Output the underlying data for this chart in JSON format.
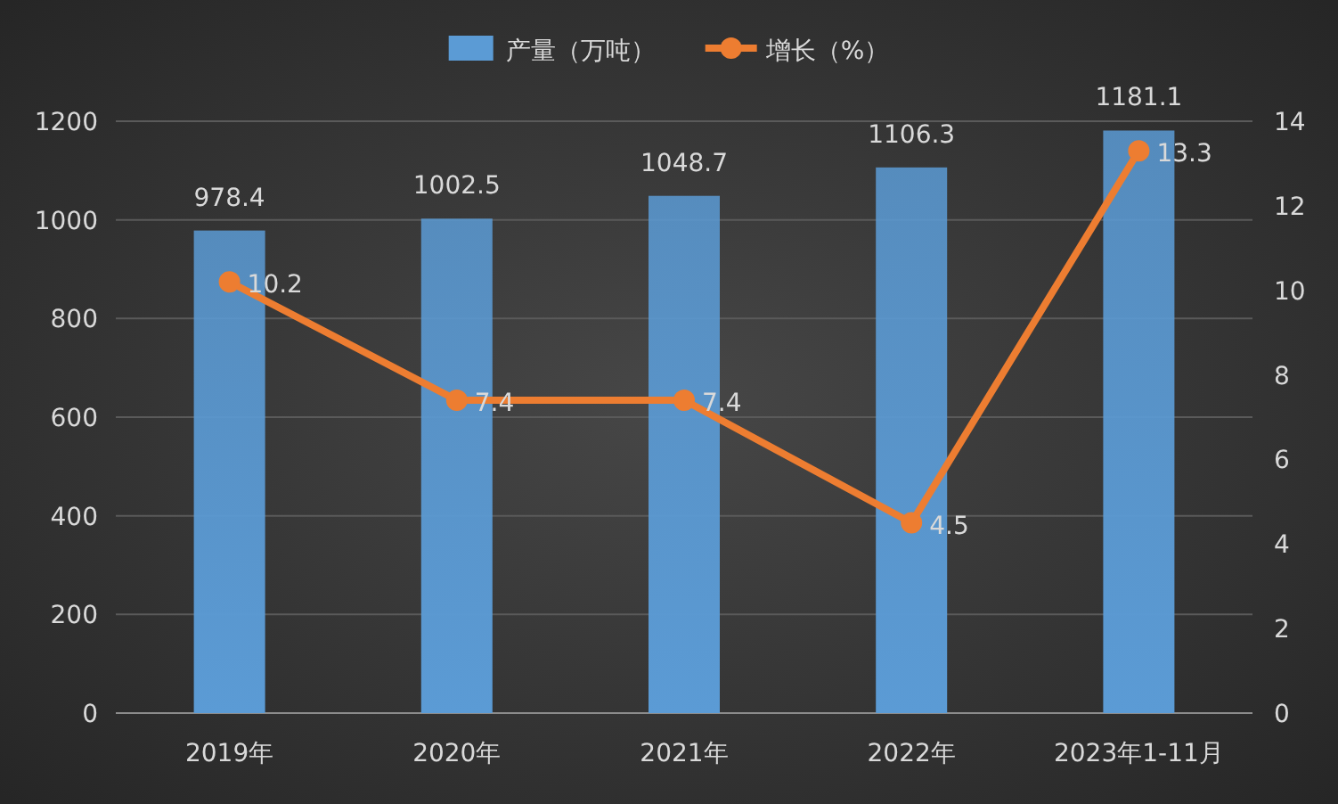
{
  "chart_data": {
    "type": "bar",
    "categories": [
      "2019年",
      "2020年",
      "2021年",
      "2022年",
      "2023年1-11月"
    ],
    "series": [
      {
        "name": "产量（万吨）",
        "color": "#5b9bd5",
        "values": [
          978.4,
          1002.5,
          1048.7,
          1106.3,
          1181.1
        ]
      },
      {
        "name": "增长（%）",
        "type": "line",
        "axis": "y2",
        "color": "#ed7d31",
        "values": [
          10.2,
          7.4,
          7.4,
          4.5,
          13.3
        ]
      }
    ],
    "ylim": [
      0,
      1200
    ],
    "yticks": [
      0,
      200,
      400,
      600,
      800,
      1000,
      1200
    ],
    "y2lim": [
      0,
      14
    ],
    "y2ticks": [
      0,
      2,
      4,
      6,
      8,
      10,
      12,
      14
    ],
    "grid": "y",
    "legend": "top",
    "data_labels": true,
    "marker": "circle"
  }
}
